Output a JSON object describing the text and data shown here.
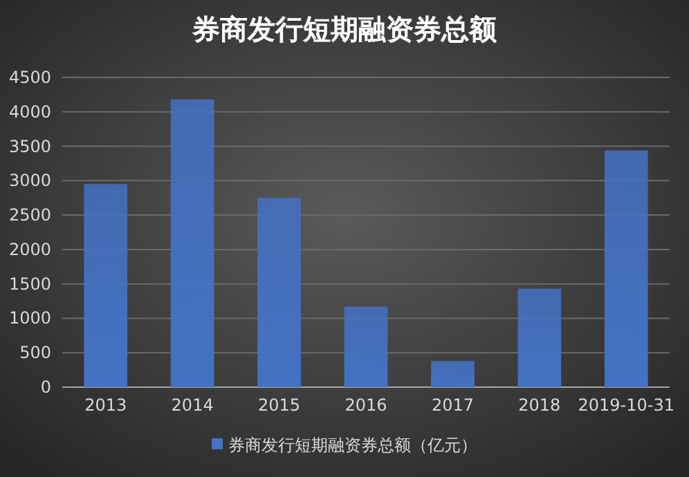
{
  "chart_data": {
    "type": "bar",
    "title": "券商发行短期融资券总额",
    "categories": [
      "2013",
      "2014",
      "2015",
      "2016",
      "2017",
      "2018",
      "2019-10-31"
    ],
    "series": [
      {
        "name": "券商发行短期融资券总额（亿元）",
        "color": "#4472c4",
        "values": [
          2950,
          4180,
          2750,
          1170,
          380,
          1430,
          3440
        ]
      }
    ],
    "ylim": [
      0,
      4500
    ],
    "yticks": [
      0,
      500,
      1000,
      1500,
      2000,
      2500,
      3000,
      3500,
      4000,
      4500
    ],
    "grid": "y",
    "legend": "bottom"
  }
}
